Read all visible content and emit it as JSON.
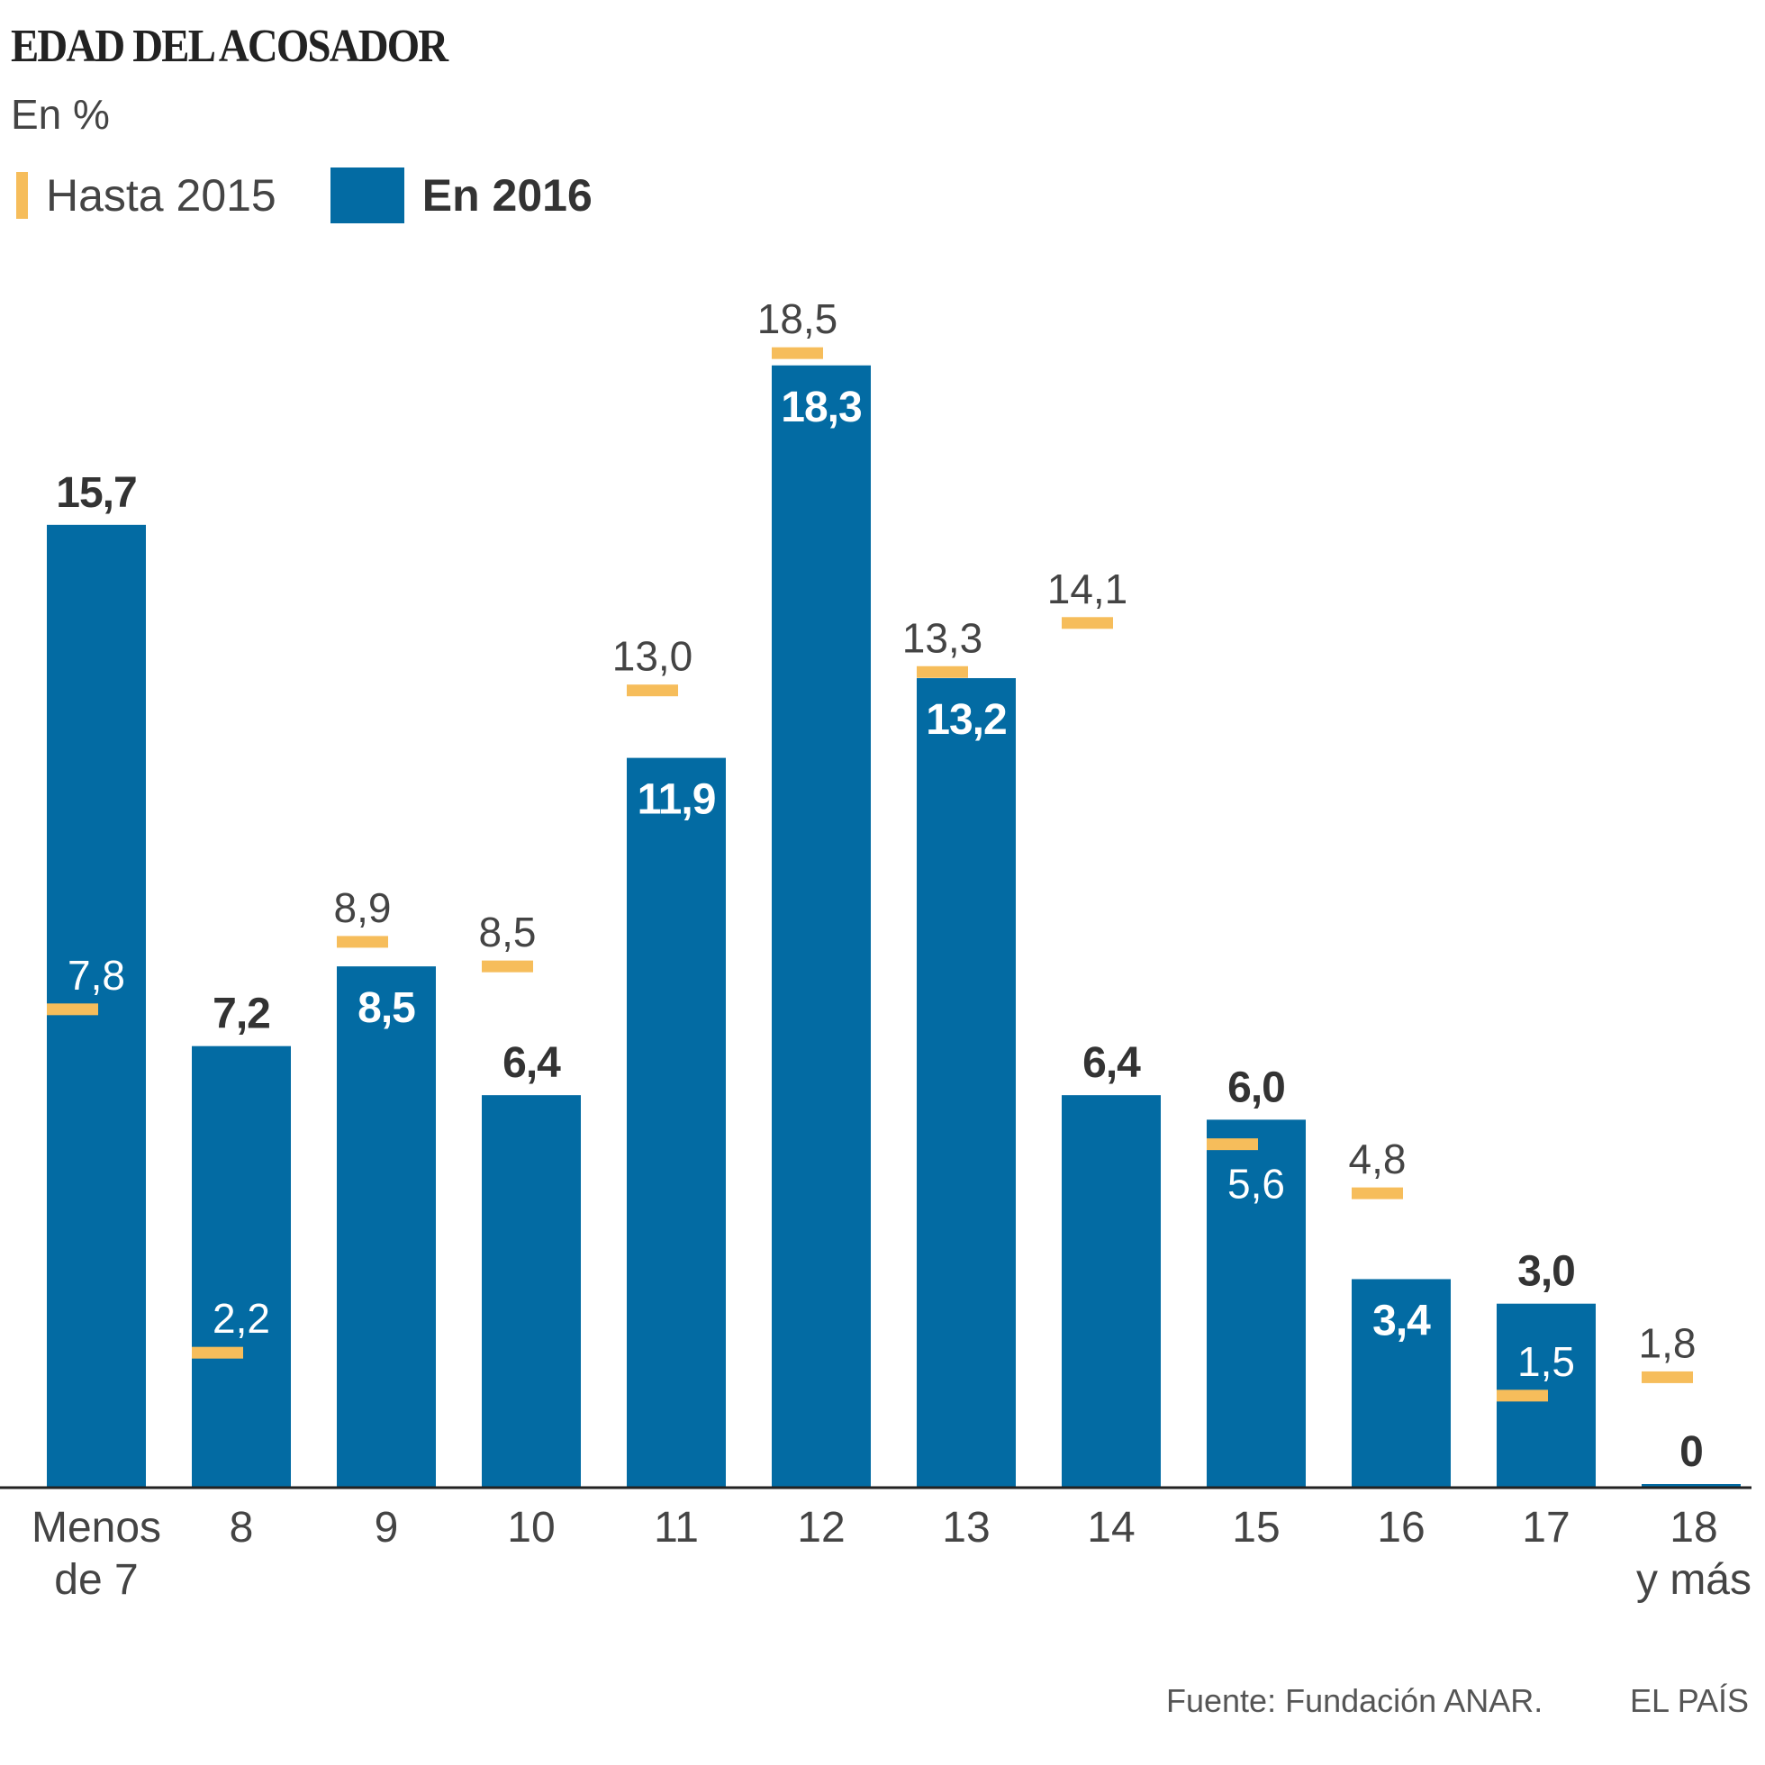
{
  "chart_data": {
    "type": "bar",
    "title": "EDAD DEL ACOSADOR",
    "subtitle": "En %",
    "legend": [
      {
        "name": "Hasta 2015",
        "color": "#f6bd5b"
      },
      {
        "name": "En 2016",
        "color": "#036ba3"
      }
    ],
    "legend_placement": "top-left",
    "grid": false,
    "ylim": [
      0,
      19
    ],
    "categories": [
      [
        "Menos",
        "de 7"
      ],
      [
        "8"
      ],
      [
        "9"
      ],
      [
        "10"
      ],
      [
        "11"
      ],
      [
        "12"
      ],
      [
        "13"
      ],
      [
        "14"
      ],
      [
        "15"
      ],
      [
        "16"
      ],
      [
        "17"
      ],
      [
        "18",
        "y más"
      ]
    ],
    "series": [
      {
        "name": "En 2016",
        "values": [
          15.7,
          7.2,
          8.5,
          6.4,
          11.9,
          18.3,
          13.2,
          6.4,
          6.0,
          3.4,
          3.0,
          0
        ],
        "labels": [
          "15,7",
          "7,2",
          "8,5",
          "6,4",
          "11,9",
          "18,3",
          "13,2",
          "6,4",
          "6,0",
          "3,4",
          "3,0",
          "0"
        ],
        "label_position": [
          "above",
          "above",
          "inside",
          "above",
          "inside",
          "inside",
          "inside",
          "above",
          "above",
          "inside",
          "above",
          "above"
        ]
      },
      {
        "name": "Hasta 2015",
        "values": [
          7.8,
          2.2,
          8.9,
          8.5,
          13.0,
          18.5,
          13.3,
          14.1,
          5.6,
          4.8,
          1.5,
          1.8
        ],
        "labels": [
          "7,8",
          "2,2",
          "8,9",
          "8,5",
          "13,0",
          "18,5",
          "13,3",
          "14,1",
          "5,6",
          "4,8",
          "1,5",
          "1,8"
        ],
        "label_position": [
          "above-light",
          "above-light",
          "above",
          "above",
          "above",
          "above",
          "above",
          "above",
          "below-light",
          "above",
          "above-light",
          "above"
        ]
      }
    ]
  },
  "footer": {
    "source": "Fuente: Fundación ANAR.",
    "brand": "EL PAÍS"
  }
}
